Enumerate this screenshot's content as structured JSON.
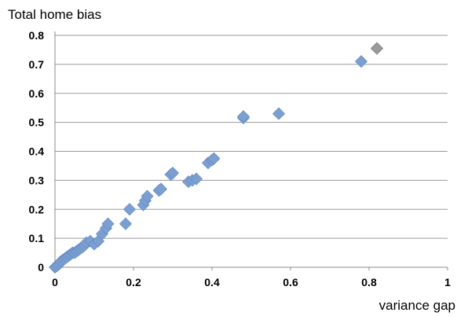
{
  "chart_data": {
    "type": "scatter",
    "title": "Total home bias",
    "xlabel": "variance gap",
    "ylabel": "",
    "xlim": [
      0,
      1
    ],
    "ylim": [
      0,
      0.8
    ],
    "xticks": [
      "0",
      "0.2",
      "0.4",
      "0.6",
      "0.8",
      "1"
    ],
    "yticks": [
      "0",
      "0.1",
      "0.2",
      "0.3",
      "0.4",
      "0.5",
      "0.6",
      "0.7",
      "0.8"
    ],
    "grid": "horizontal",
    "legend": "none",
    "marker": "diamond",
    "colors": {
      "point": "#7b9fd0",
      "highlight": "#9a9a9a"
    },
    "series": [
      {
        "points": [
          [
            0.0,
            0.0
          ],
          [
            0.005,
            0.005
          ],
          [
            0.01,
            0.01
          ],
          [
            0.015,
            0.02
          ],
          [
            0.02,
            0.025
          ],
          [
            0.025,
            0.03
          ],
          [
            0.03,
            0.035
          ],
          [
            0.035,
            0.04
          ],
          [
            0.04,
            0.045
          ],
          [
            0.045,
            0.05
          ],
          [
            0.05,
            0.05
          ],
          [
            0.055,
            0.055
          ],
          [
            0.06,
            0.06
          ],
          [
            0.065,
            0.065
          ],
          [
            0.07,
            0.07
          ],
          [
            0.075,
            0.075
          ],
          [
            0.08,
            0.085
          ],
          [
            0.09,
            0.09
          ],
          [
            0.1,
            0.08
          ],
          [
            0.11,
            0.09
          ],
          [
            0.12,
            0.115
          ],
          [
            0.13,
            0.135
          ],
          [
            0.135,
            0.15
          ],
          [
            0.18,
            0.15
          ],
          [
            0.19,
            0.2
          ],
          [
            0.225,
            0.215
          ],
          [
            0.23,
            0.23
          ],
          [
            0.235,
            0.245
          ],
          [
            0.265,
            0.265
          ],
          [
            0.27,
            0.27
          ],
          [
            0.295,
            0.32
          ],
          [
            0.3,
            0.325
          ],
          [
            0.34,
            0.295
          ],
          [
            0.35,
            0.3
          ],
          [
            0.36,
            0.305
          ],
          [
            0.39,
            0.36
          ],
          [
            0.4,
            0.37
          ],
          [
            0.405,
            0.375
          ],
          [
            0.48,
            0.515
          ],
          [
            0.48,
            0.52
          ],
          [
            0.57,
            0.53
          ],
          [
            0.78,
            0.71
          ],
          [
            0.82,
            0.755
          ]
        ]
      }
    ]
  }
}
